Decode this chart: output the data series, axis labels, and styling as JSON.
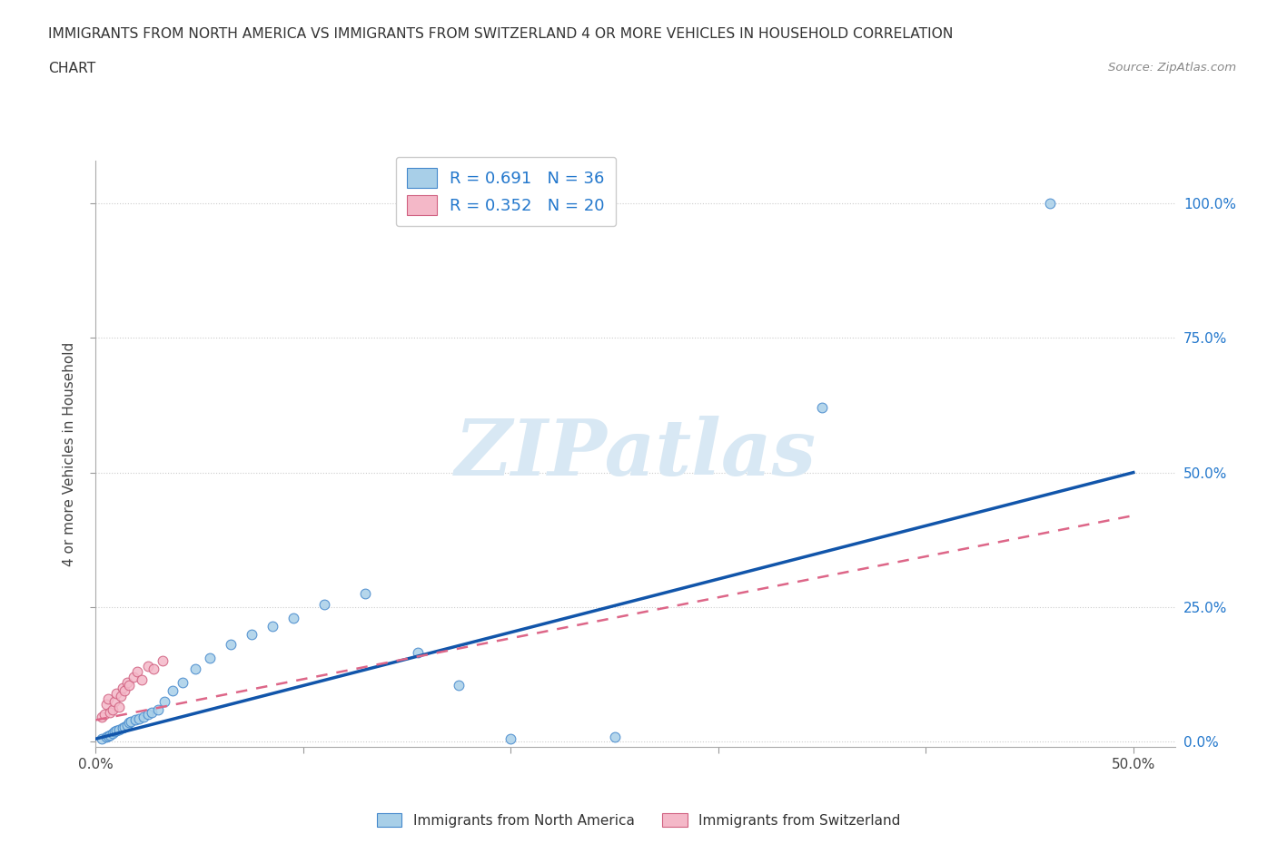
{
  "title_line1": "IMMIGRANTS FROM NORTH AMERICA VS IMMIGRANTS FROM SWITZERLAND 4 OR MORE VEHICLES IN HOUSEHOLD CORRELATION",
  "title_line2": "CHART",
  "source": "Source: ZipAtlas.com",
  "ylabel": "4 or more Vehicles in Household",
  "xlim": [
    0.0,
    0.52
  ],
  "ylim": [
    -0.01,
    1.08
  ],
  "xtick_positions": [
    0.0,
    0.1,
    0.2,
    0.3,
    0.4,
    0.5
  ],
  "xtick_labels": [
    "0.0%",
    "",
    "",
    "",
    "",
    "50.0%"
  ],
  "ytick_positions": [
    0.0,
    0.25,
    0.5,
    0.75,
    1.0
  ],
  "ytick_labels_right": [
    "0.0%",
    "25.0%",
    "50.0%",
    "75.0%",
    "100.0%"
  ],
  "color_blue": "#a8cfe8",
  "color_pink": "#f4b8c8",
  "edge_blue": "#4488cc",
  "edge_pink": "#d06080",
  "line_blue": "#1155aa",
  "line_pink": "#dd6688",
  "R_blue": 0.691,
  "N_blue": 36,
  "R_pink": 0.352,
  "N_pink": 20,
  "legend_label_blue": "Immigrants from North America",
  "legend_label_pink": "Immigrants from Switzerland",
  "watermark": "ZIPatlas",
  "na_x": [
    0.003,
    0.005,
    0.006,
    0.007,
    0.008,
    0.009,
    0.01,
    0.011,
    0.013,
    0.014,
    0.015,
    0.016,
    0.017,
    0.019,
    0.021,
    0.023,
    0.025,
    0.027,
    0.03,
    0.033,
    0.037,
    0.042,
    0.048,
    0.055,
    0.065,
    0.075,
    0.085,
    0.095,
    0.11,
    0.13,
    0.155,
    0.175,
    0.2,
    0.25,
    0.35,
    0.46
  ],
  "na_y": [
    0.005,
    0.008,
    0.01,
    0.012,
    0.015,
    0.018,
    0.02,
    0.022,
    0.025,
    0.028,
    0.03,
    0.035,
    0.038,
    0.04,
    0.042,
    0.045,
    0.05,
    0.055,
    0.06,
    0.075,
    0.095,
    0.11,
    0.135,
    0.155,
    0.18,
    0.2,
    0.215,
    0.23,
    0.255,
    0.275,
    0.165,
    0.105,
    0.005,
    0.008,
    0.62,
    1.0
  ],
  "ch_x": [
    0.003,
    0.004,
    0.005,
    0.006,
    0.007,
    0.008,
    0.009,
    0.01,
    0.011,
    0.012,
    0.013,
    0.014,
    0.015,
    0.016,
    0.018,
    0.02,
    0.022,
    0.025,
    0.028,
    0.032
  ],
  "ch_y": [
    0.045,
    0.05,
    0.07,
    0.08,
    0.055,
    0.06,
    0.075,
    0.09,
    0.065,
    0.085,
    0.1,
    0.095,
    0.11,
    0.105,
    0.12,
    0.13,
    0.115,
    0.14,
    0.135,
    0.15
  ],
  "na_line_x0": 0.0,
  "na_line_x1": 0.5,
  "na_line_y0": 0.005,
  "na_line_y1": 0.5,
  "ch_line_x0": 0.0,
  "ch_line_x1": 0.5,
  "ch_line_y0": 0.04,
  "ch_line_y1": 0.42
}
